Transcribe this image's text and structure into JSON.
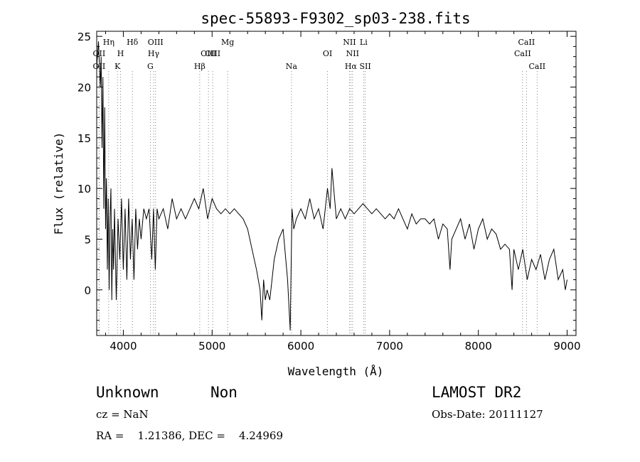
{
  "chart_data": {
    "type": "line",
    "title": "spec-55893-F9302_sp03-238.fits",
    "xlabel": "Wavelength (Å)",
    "ylabel": "Flux (relative)",
    "xlim": [
      3700,
      9100
    ],
    "ylim": [
      -4.5,
      25.5
    ],
    "xticks": [
      4000,
      5000,
      6000,
      7000,
      8000,
      9000
    ],
    "yticks": [
      0,
      5,
      10,
      15,
      20,
      25
    ],
    "grid": false,
    "series": [
      {
        "x": [
          3700,
          3720,
          3740,
          3750,
          3760,
          3770,
          3780,
          3790,
          3800,
          3810,
          3820,
          3830,
          3840,
          3850,
          3860,
          3870,
          3880,
          3890,
          3900,
          3920,
          3940,
          3960,
          3980,
          4000,
          4020,
          4040,
          4060,
          4080,
          4100,
          4120,
          4140,
          4160,
          4180,
          4200,
          4230,
          4260,
          4290,
          4320,
          4340,
          4360,
          4380,
          4400,
          4450,
          4500,
          4550,
          4600,
          4650,
          4700,
          4750,
          4800,
          4850,
          4900,
          4950,
          5000,
          5050,
          5100,
          5150,
          5200,
          5250,
          5300,
          5350,
          5400,
          5450,
          5500,
          5540,
          5560,
          5580,
          5600,
          5620,
          5650,
          5700,
          5750,
          5800,
          5850,
          5880,
          5900,
          5920,
          5950,
          6000,
          6050,
          6100,
          6150,
          6200,
          6250,
          6300,
          6330,
          6350,
          6400,
          6450,
          6500,
          6550,
          6600,
          6650,
          6700,
          6750,
          6800,
          6850,
          6900,
          6950,
          7000,
          7050,
          7100,
          7150,
          7200,
          7250,
          7300,
          7350,
          7400,
          7450,
          7500,
          7550,
          7600,
          7650,
          7680,
          7700,
          7750,
          7800,
          7850,
          7900,
          7950,
          8000,
          8050,
          8100,
          8150,
          8200,
          8250,
          8300,
          8350,
          8380,
          8400,
          8450,
          8500,
          8550,
          8600,
          8650,
          8700,
          8750,
          8800,
          8850,
          8900,
          8950,
          8980,
          9000
        ],
        "y": [
          22,
          24.5,
          20,
          23,
          14,
          21,
          8,
          18,
          6,
          11,
          2,
          9,
          0,
          7,
          10,
          -1,
          6,
          2,
          8,
          -1,
          7,
          3,
          9,
          2,
          8,
          1,
          9,
          3,
          7,
          1,
          8,
          4,
          7,
          5,
          8,
          7,
          8,
          3,
          8,
          2,
          8,
          7,
          8,
          6,
          9,
          7,
          8,
          7,
          8,
          9,
          8,
          10,
          7,
          9,
          8,
          7.5,
          8,
          7.5,
          8,
          7.5,
          7,
          6,
          4,
          2,
          0,
          -3,
          1,
          -1,
          0,
          -1,
          3,
          5,
          6,
          1,
          -4,
          8,
          6,
          7,
          8,
          7,
          9,
          7,
          8,
          6,
          10,
          8,
          12,
          7,
          8,
          7,
          8,
          7.5,
          8,
          8.5,
          8,
          7.5,
          8,
          7.5,
          7,
          7.5,
          7,
          8,
          7,
          6,
          7.5,
          6.5,
          7,
          7,
          6.5,
          7,
          5,
          6.5,
          6,
          2,
          5,
          6,
          7,
          5,
          6.5,
          4,
          6,
          7,
          5,
          6,
          5.5,
          4,
          4.5,
          4,
          0,
          4,
          2,
          4,
          1,
          3,
          2,
          3.5,
          1,
          3,
          4,
          1,
          2,
          0,
          1
        ]
      }
    ],
    "lines": [
      {
        "wl": 3727,
        "label": "OII",
        "row": 2
      },
      {
        "wl": 3727,
        "label": "OII",
        "row": 3
      },
      {
        "wl": 3835,
        "label": "Hη",
        "row": 1
      },
      {
        "wl": 3934,
        "label": "K",
        "row": 3
      },
      {
        "wl": 3969,
        "label": "H",
        "row": 2
      },
      {
        "wl": 4102,
        "label": "Hδ",
        "row": 1
      },
      {
        "wl": 4304,
        "label": "G",
        "row": 3
      },
      {
        "wl": 4341,
        "label": "Hγ",
        "row": 2
      },
      {
        "wl": 4363,
        "label": "OIII",
        "row": 1
      },
      {
        "wl": 4861,
        "label": "Hβ",
        "row": 3
      },
      {
        "wl": 4959,
        "label": "OIII",
        "row": 2
      },
      {
        "wl": 5007,
        "label": "OIII",
        "row": 2
      },
      {
        "wl": 5175,
        "label": "Mg",
        "row": 1
      },
      {
        "wl": 5894,
        "label": "Na",
        "row": 3
      },
      {
        "wl": 6300,
        "label": "OI",
        "row": 2
      },
      {
        "wl": 6548,
        "label": "NII",
        "row": 1
      },
      {
        "wl": 6563,
        "label": "Hα",
        "row": 3
      },
      {
        "wl": 6583,
        "label": "NII",
        "row": 2
      },
      {
        "wl": 6707,
        "label": "Li",
        "row": 1
      },
      {
        "wl": 6725,
        "label": "SII",
        "row": 3
      },
      {
        "wl": 8498,
        "label": "CaII",
        "row": 2
      },
      {
        "wl": 8542,
        "label": "CaII",
        "row": 1
      },
      {
        "wl": 8662,
        "label": "CaII",
        "row": 3
      }
    ]
  },
  "info": {
    "class": "Unknown",
    "subclass": "Non",
    "cz": "cz = NaN",
    "coords": "RA =    1.21386, DEC =    4.24969",
    "survey": "LAMOST DR2",
    "obs_date": "Obs-Date: 20111127"
  }
}
